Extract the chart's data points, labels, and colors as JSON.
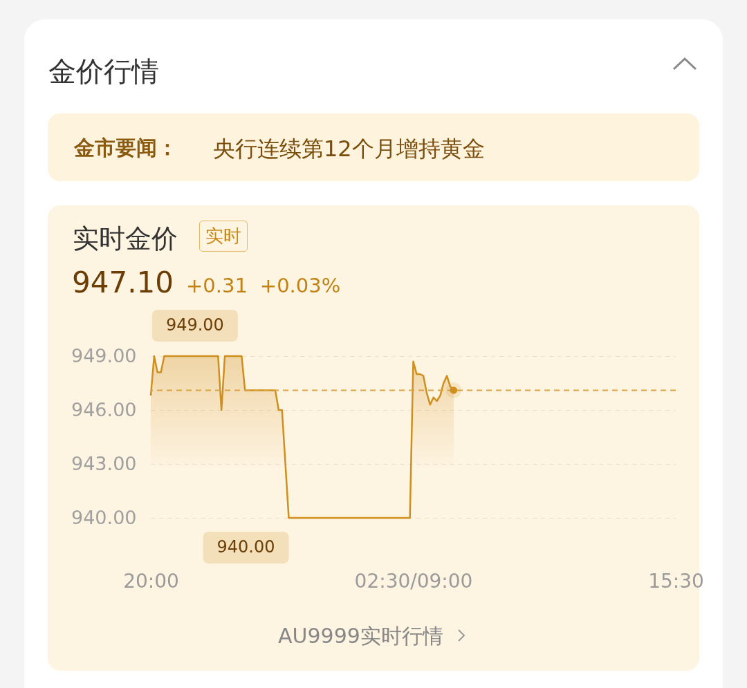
{
  "chart_data": {
    "type": "area",
    "title": "金价行情",
    "subtitle": "实时金价",
    "annotations": [
      "金市要闻：",
      "央行连续第12个月增持黄金",
      "实时",
      "947.10",
      "+0.31",
      "+0.03%",
      "AU9999实时行情",
      "949.00",
      "940.00"
    ],
    "categories": [
      "20:00",
      null,
      null,
      null,
      null,
      null,
      null,
      null,
      null,
      null,
      null,
      null,
      null,
      null,
      null,
      null,
      null,
      null,
      null,
      null,
      null,
      null,
      null,
      null,
      null,
      null,
      null,
      null,
      null,
      null,
      null,
      null,
      null,
      null,
      null,
      null,
      null,
      null,
      null,
      null,
      null,
      null,
      null,
      null,
      null,
      null,
      null,
      null,
      null,
      null,
      null,
      null,
      null,
      null,
      null,
      null,
      null,
      null,
      null,
      null,
      null,
      null,
      null,
      null,
      null,
      null,
      null,
      null,
      null,
      null,
      null,
      null,
      null,
      null,
      null,
      null,
      null,
      null,
      "02:30/09:00",
      null,
      null,
      null,
      null,
      null,
      null,
      null,
      null,
      null,
      null,
      null,
      null,
      null,
      null,
      null,
      null,
      null,
      null,
      null,
      null,
      null,
      null,
      null,
      null,
      null,
      null,
      null,
      null,
      null,
      null,
      null,
      null,
      null,
      null,
      null,
      null,
      null,
      null,
      null,
      null,
      null,
      null,
      null,
      null,
      null,
      null,
      null,
      null,
      null,
      null,
      null,
      null,
      null,
      null,
      null,
      null,
      null,
      null,
      null,
      null,
      null,
      null,
      null,
      null,
      null,
      null,
      null,
      null,
      null,
      null,
      null,
      null,
      null,
      null,
      null,
      null,
      null,
      "15:30"
    ],
    "values": [
      946.8,
      949,
      948.1,
      948.1,
      949,
      949,
      949,
      949,
      949,
      949,
      949,
      949,
      949,
      949,
      949,
      949,
      949,
      949,
      949,
      949,
      949,
      946,
      949,
      949,
      949,
      949,
      949,
      949,
      947.1,
      947.1,
      947.1,
      947.1,
      947.1,
      947.1,
      947.1,
      947.1,
      947.1,
      947.1,
      946,
      946,
      943,
      940,
      940,
      940,
      940,
      940,
      940,
      940,
      940,
      940,
      940,
      940,
      940,
      940,
      940,
      940,
      940,
      940,
      940,
      940,
      940,
      940,
      940,
      940,
      940,
      940,
      940,
      940,
      940,
      940,
      940,
      940,
      940,
      940,
      940,
      940,
      940,
      940,
      948.7,
      948,
      948,
      947.9,
      946.95,
      946.3,
      946.7,
      946.5,
      946.8,
      947.5,
      947.9,
      947.3,
      947.1,
      null,
      null,
      null,
      null,
      null,
      null,
      null,
      null,
      null,
      null,
      null,
      null,
      null,
      null,
      null,
      null,
      null,
      null,
      null,
      null,
      null,
      null,
      null,
      null,
      null,
      null,
      null,
      null,
      null,
      null,
      null,
      null,
      null,
      null,
      null,
      null,
      null,
      null,
      null,
      null,
      null,
      null,
      null,
      null,
      null,
      null,
      null,
      null,
      null,
      null,
      null,
      null,
      null,
      null,
      null,
      null,
      null,
      null,
      null,
      null,
      null,
      null,
      null,
      null,
      null,
      null
    ],
    "color": "#cf8f1e",
    "ylim": [
      940,
      949
    ],
    "yticks": [
      {
        "value": 940,
        "label": "940.00"
      },
      {
        "value": 943,
        "label": "943.00"
      },
      {
        "value": 946,
        "label": "946.00"
      },
      {
        "value": 949,
        "label": "949.00"
      }
    ],
    "grid": "y",
    "ref_lines": [
      {
        "axis": "y",
        "value": 947.1,
        "color": "#d9a441",
        "line_style": "dashed"
      }
    ]
  }
}
